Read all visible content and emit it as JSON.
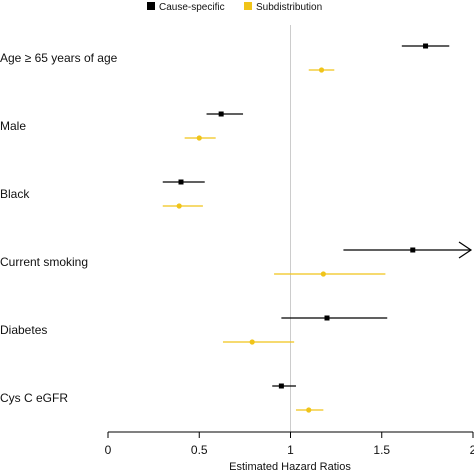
{
  "chart_data": {
    "type": "forest",
    "xlabel": "Estimated Hazard Ratios",
    "xlim": [
      0,
      2
    ],
    "x_ticks": [
      0,
      0.5,
      1,
      1.5,
      2
    ],
    "x_tick_labels": [
      "0",
      "0.5",
      "1",
      "1.5",
      "2"
    ],
    "reference_line": 1,
    "legend_position": "top",
    "categories": [
      "Age ≥ 65 years of age",
      "Male",
      "Black",
      "Current smoking",
      "Diabetes",
      "Cys C eGFR"
    ],
    "series": [
      {
        "name": "Cause-specific",
        "color": "#000000",
        "marker": "square",
        "values": [
          {
            "est": 1.74,
            "lo": 1.61,
            "hi": 1.87
          },
          {
            "est": 0.62,
            "lo": 0.54,
            "hi": 0.74
          },
          {
            "est": 0.4,
            "lo": 0.3,
            "hi": 0.53
          },
          {
            "est": 1.67,
            "lo": 1.29,
            "hi": 2.06,
            "arrow": true
          },
          {
            "est": 1.2,
            "lo": 0.95,
            "hi": 1.53
          },
          {
            "est": 0.95,
            "lo": 0.9,
            "hi": 1.03
          }
        ]
      },
      {
        "name": "Subdistribution",
        "color": "#f0c419",
        "marker": "circle",
        "values": [
          {
            "est": 1.17,
            "lo": 1.1,
            "hi": 1.24
          },
          {
            "est": 0.5,
            "lo": 0.42,
            "hi": 0.59
          },
          {
            "est": 0.39,
            "lo": 0.3,
            "hi": 0.52
          },
          {
            "est": 1.18,
            "lo": 0.91,
            "hi": 1.52
          },
          {
            "est": 0.79,
            "lo": 0.63,
            "hi": 1.02
          },
          {
            "est": 1.1,
            "lo": 1.03,
            "hi": 1.18
          }
        ]
      }
    ]
  }
}
